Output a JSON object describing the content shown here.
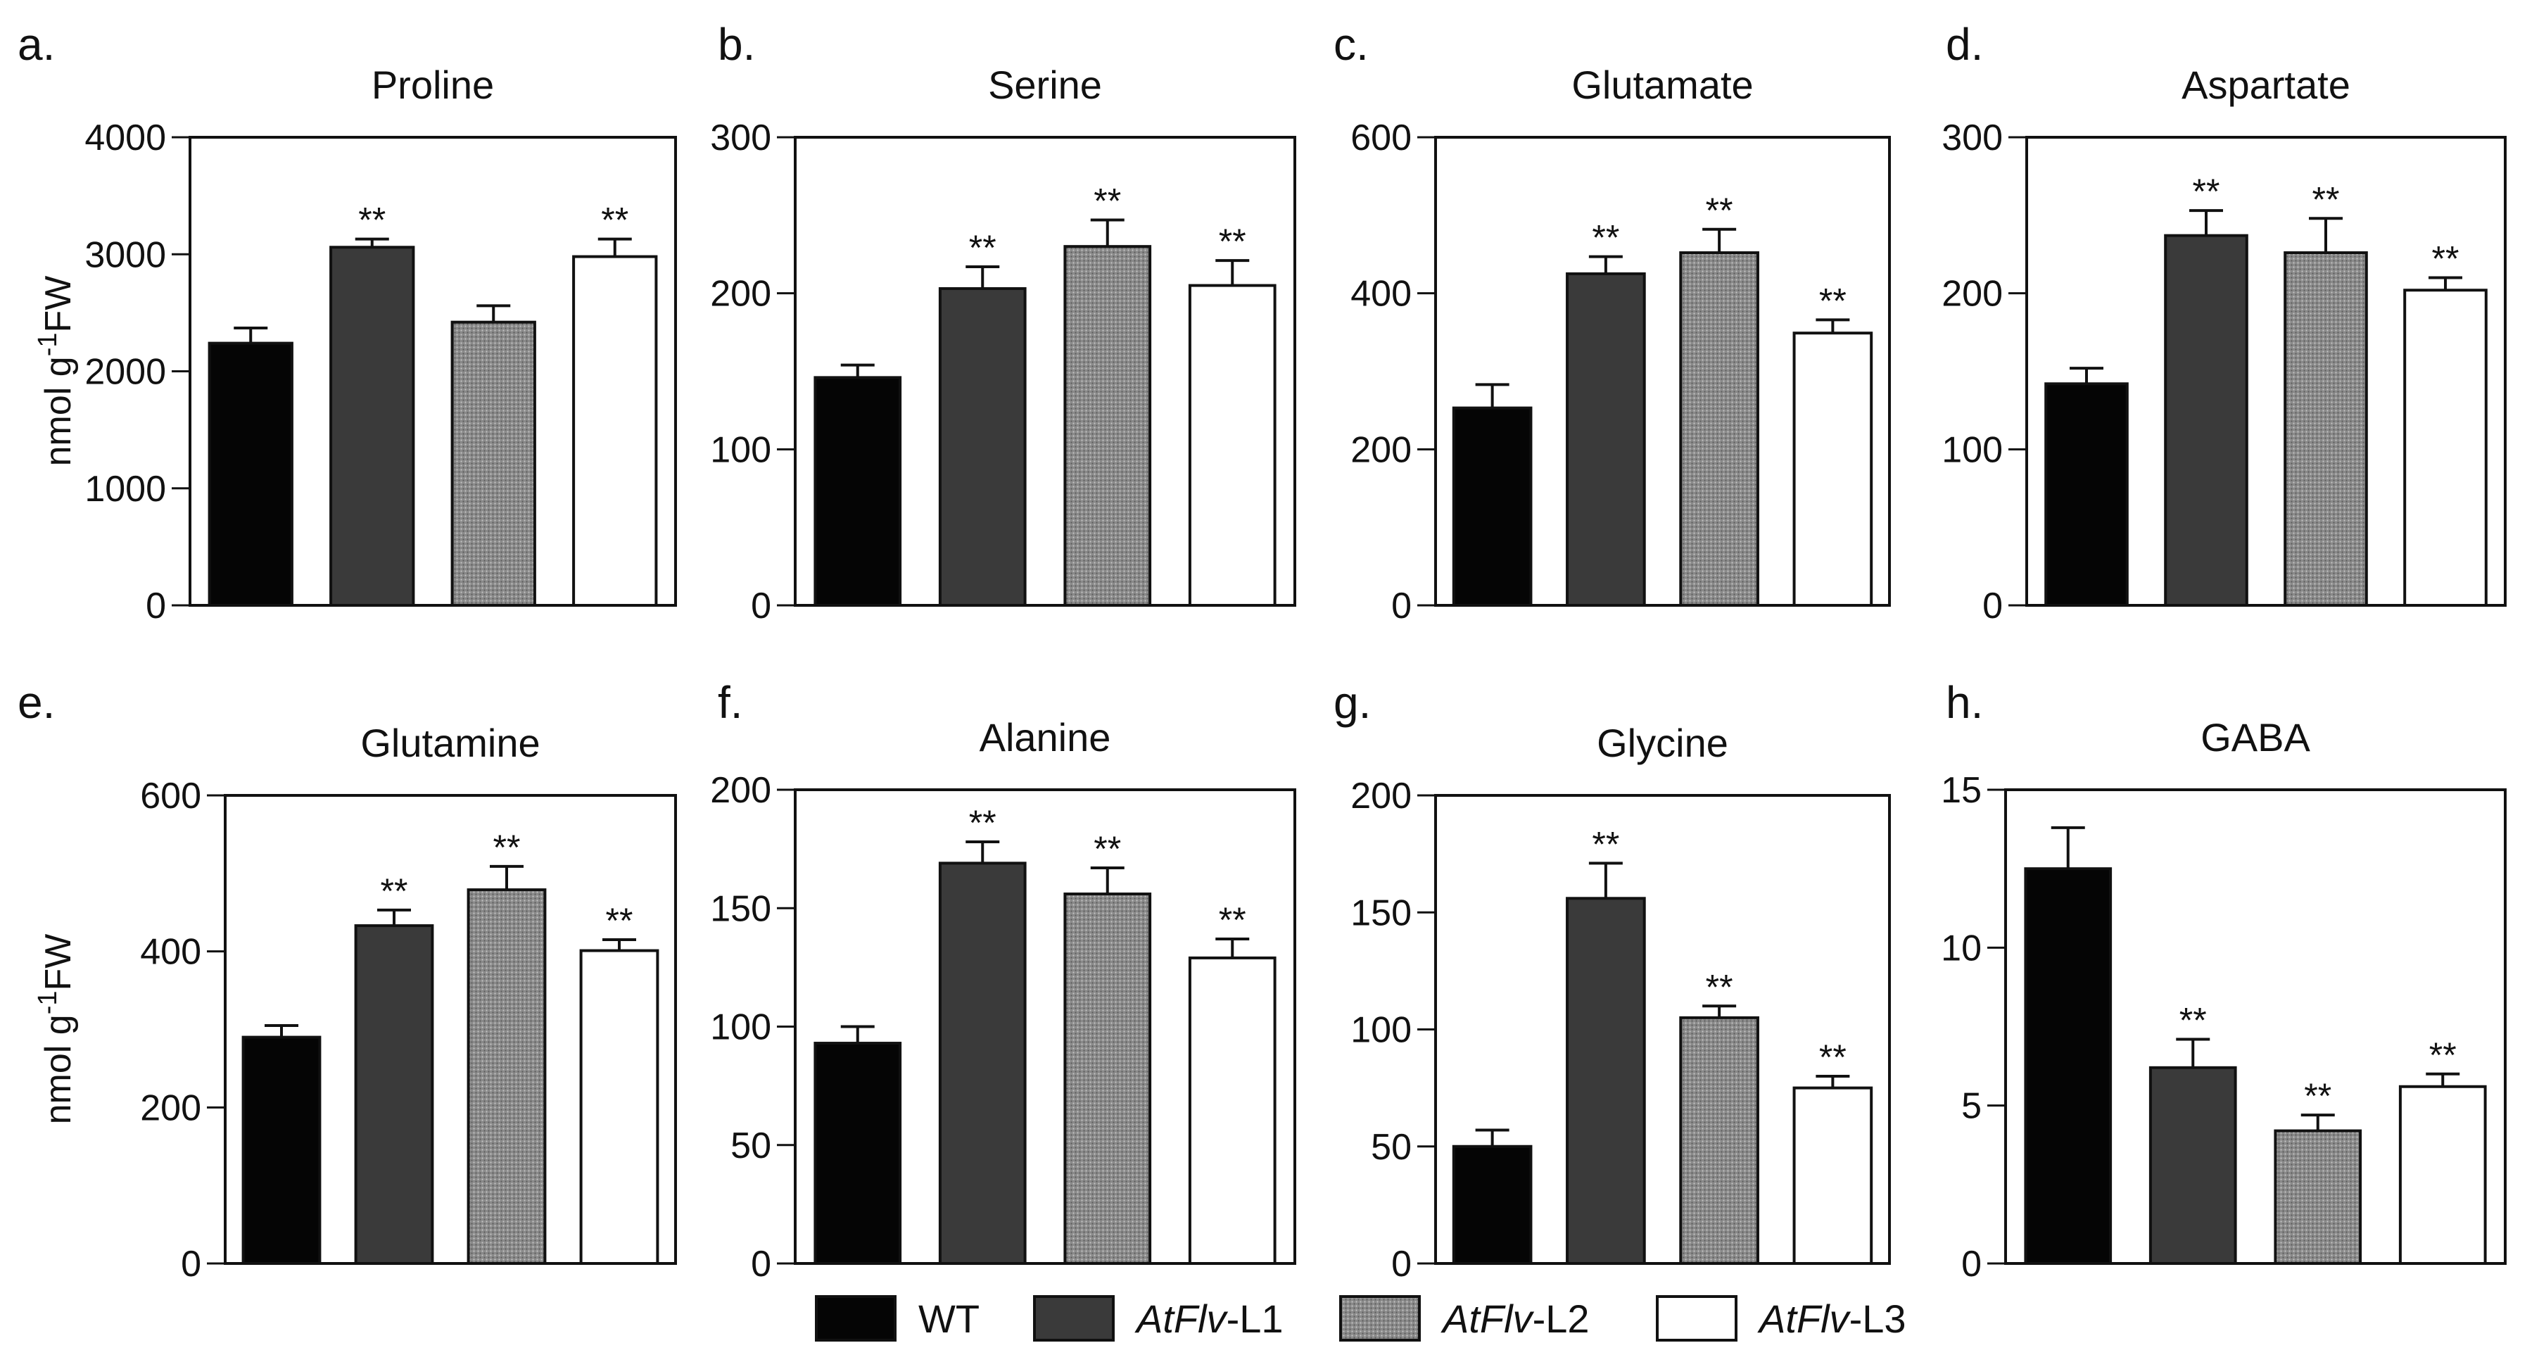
{
  "chart_data": [
    {
      "panel": "a.",
      "title": "Proline",
      "type": "bar",
      "ylabel": "nmol g-1FW",
      "ylim": [
        0,
        4000
      ],
      "ticks": [
        0,
        1000,
        2000,
        3000,
        4000
      ],
      "tick_labels": [
        "0",
        "1000",
        "2000",
        "3000",
        "4000"
      ],
      "categories": [
        "WT",
        "AtFlv-L1",
        "AtFlv-L2",
        "AtFlv-L3"
      ],
      "values": [
        2240,
        3060,
        2420,
        2980
      ],
      "errors": [
        130,
        70,
        140,
        150
      ],
      "sig": [
        "",
        "**",
        "",
        "**"
      ]
    },
    {
      "panel": "b.",
      "title": "Serine",
      "type": "bar",
      "ylabel": "",
      "ylim": [
        0,
        300
      ],
      "ticks": [
        0,
        100,
        200,
        300
      ],
      "tick_labels": [
        "0",
        "100",
        "200",
        "300"
      ],
      "categories": [
        "WT",
        "AtFlv-L1",
        "AtFlv-L2",
        "AtFlv-L3"
      ],
      "values": [
        146,
        203,
        230,
        205
      ],
      "errors": [
        8,
        14,
        17,
        16
      ],
      "sig": [
        "",
        "**",
        "**",
        "**"
      ]
    },
    {
      "panel": "c.",
      "title": "Glutamate",
      "type": "bar",
      "ylabel": "",
      "ylim": [
        0,
        600
      ],
      "ticks": [
        0,
        200,
        400,
        600
      ],
      "tick_labels": [
        "0",
        "200",
        "400",
        "600"
      ],
      "categories": [
        "WT",
        "AtFlv-L1",
        "AtFlv-L2",
        "AtFlv-L3"
      ],
      "values": [
        253,
        425,
        452,
        349
      ],
      "errors": [
        30,
        22,
        30,
        17
      ],
      "sig": [
        "",
        "**",
        "**",
        "**"
      ]
    },
    {
      "panel": "d.",
      "title": "Aspartate",
      "type": "bar",
      "ylabel": "",
      "ylim": [
        0,
        300
      ],
      "ticks": [
        0,
        100,
        200,
        300
      ],
      "tick_labels": [
        "0",
        "100",
        "200",
        "300"
      ],
      "categories": [
        "WT",
        "AtFlv-L1",
        "AtFlv-L2",
        "AtFlv-L3"
      ],
      "values": [
        142,
        237,
        226,
        202
      ],
      "errors": [
        10,
        16,
        22,
        8
      ],
      "sig": [
        "",
        "**",
        "**",
        "**"
      ]
    },
    {
      "panel": "e.",
      "title": "Glutamine",
      "type": "bar",
      "ylabel": "nmol g-1FW",
      "ylim": [
        0,
        600
      ],
      "ticks": [
        0,
        200,
        400,
        600
      ],
      "tick_labels": [
        "0",
        "200",
        "400",
        "600"
      ],
      "categories": [
        "WT",
        "AtFlv-L1",
        "AtFlv-L2",
        "AtFlv-L3"
      ],
      "values": [
        290,
        433,
        479,
        401
      ],
      "errors": [
        15,
        20,
        30,
        14
      ],
      "sig": [
        "",
        "**",
        "**",
        "**"
      ]
    },
    {
      "panel": "f.",
      "title": "Alanine",
      "type": "bar",
      "ylabel": "",
      "ylim": [
        0,
        200
      ],
      "ticks": [
        0,
        50,
        100,
        150,
        200
      ],
      "tick_labels": [
        "0",
        "50",
        "100",
        "150",
        "200"
      ],
      "categories": [
        "WT",
        "AtFlv-L1",
        "AtFlv-L2",
        "AtFlv-L3"
      ],
      "values": [
        93,
        169,
        156,
        129
      ],
      "errors": [
        7,
        9,
        11,
        8
      ],
      "sig": [
        "",
        "**",
        "**",
        "**"
      ]
    },
    {
      "panel": "g.",
      "title": "Glycine",
      "type": "bar",
      "ylabel": "",
      "ylim": [
        0,
        200
      ],
      "ticks": [
        0,
        50,
        100,
        150,
        200
      ],
      "tick_labels": [
        "0",
        "50",
        "100",
        "150",
        "200"
      ],
      "categories": [
        "WT",
        "AtFlv-L1",
        "AtFlv-L2",
        "AtFlv-L3"
      ],
      "values": [
        50,
        156,
        105,
        75
      ],
      "errors": [
        7,
        15,
        5,
        5
      ],
      "sig": [
        "",
        "**",
        "**",
        "**"
      ]
    },
    {
      "panel": "h.",
      "title": "GABA",
      "type": "bar",
      "ylabel": "",
      "ylim": [
        0,
        15
      ],
      "ticks": [
        0,
        5,
        10,
        15
      ],
      "tick_labels": [
        "0",
        "5",
        "10",
        "15"
      ],
      "categories": [
        "WT",
        "AtFlv-L1",
        "AtFlv-L2",
        "AtFlv-L3"
      ],
      "values": [
        12.5,
        6.2,
        4.2,
        5.6
      ],
      "errors": [
        1.3,
        0.9,
        0.5,
        0.4
      ],
      "sig": [
        "",
        "**",
        "**",
        "**"
      ]
    }
  ],
  "legend": [
    {
      "prefix": "",
      "suffix": "WT",
      "color": "#050505",
      "pattern": "none"
    },
    {
      "prefix": "AtFlv",
      "suffix": "-L1",
      "color": "#3a3a3a",
      "pattern": "none"
    },
    {
      "prefix": "AtFlv",
      "suffix": "-L2",
      "color": "#8a8a8a",
      "pattern": "dots"
    },
    {
      "prefix": "AtFlv",
      "suffix": "-L3",
      "color": "#ffffff",
      "pattern": "none"
    }
  ]
}
